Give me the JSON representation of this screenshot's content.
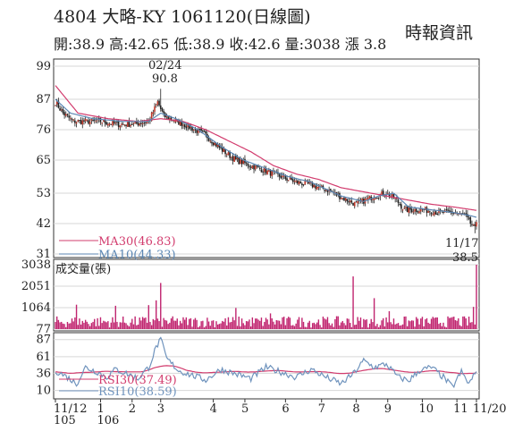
{
  "header": {
    "title": "4804  大略-KY 1061120(日線圖)",
    "source": "時報資訊",
    "ohlc": "開:38.9 高:42.65 低:38.9 收:42.6 量:3038 漲 3.8"
  },
  "chart_data": [
    {
      "type": "candlestick",
      "yticks": [
        99,
        87,
        76,
        65,
        53,
        42,
        31
      ],
      "ylim": [
        31,
        99
      ],
      "annotations": [
        {
          "label": "02/24",
          "value": "90.8"
        },
        {
          "label": "11/17",
          "value": "38.5"
        }
      ],
      "legend": [
        {
          "name": "MA30(46.83)",
          "color": "#d23c6e"
        },
        {
          "name": "MA10(44.33)",
          "color": "#5b86b3"
        }
      ],
      "months": [
        "11/12",
        "1",
        "2",
        "3",
        "4",
        "5",
        "6",
        "7",
        "8",
        "9",
        "10",
        "11",
        "11/20"
      ],
      "close_anchors": [
        [
          0,
          86
        ],
        [
          5,
          82
        ],
        [
          12,
          79
        ],
        [
          20,
          79
        ],
        [
          30,
          79
        ],
        [
          40,
          78
        ],
        [
          52,
          78
        ],
        [
          62,
          79
        ],
        [
          68,
          86
        ],
        [
          72,
          81
        ],
        [
          85,
          78
        ],
        [
          100,
          74
        ],
        [
          110,
          69
        ],
        [
          120,
          65
        ],
        [
          130,
          63
        ],
        [
          140,
          61
        ],
        [
          150,
          59
        ],
        [
          160,
          57
        ],
        [
          170,
          56
        ],
        [
          182,
          54
        ],
        [
          192,
          51
        ],
        [
          200,
          49
        ],
        [
          212,
          52
        ],
        [
          220,
          53
        ],
        [
          226,
          51
        ],
        [
          232,
          47
        ],
        [
          245,
          47
        ],
        [
          255,
          46
        ],
        [
          265,
          46
        ],
        [
          272,
          45
        ],
        [
          279,
          40
        ],
        [
          280,
          42.6
        ]
      ],
      "ma30_anchors": [
        [
          0,
          92
        ],
        [
          15,
          82
        ],
        [
          35,
          80
        ],
        [
          55,
          79
        ],
        [
          70,
          80
        ],
        [
          85,
          79
        ],
        [
          100,
          76
        ],
        [
          115,
          72
        ],
        [
          130,
          68
        ],
        [
          145,
          63
        ],
        [
          160,
          60
        ],
        [
          175,
          58
        ],
        [
          190,
          55
        ],
        [
          210,
          53
        ],
        [
          230,
          51
        ],
        [
          250,
          49
        ],
        [
          265,
          48
        ],
        [
          280,
          46.8
        ]
      ],
      "ma10_anchors": [
        [
          0,
          87
        ],
        [
          10,
          82
        ],
        [
          25,
          80
        ],
        [
          45,
          79
        ],
        [
          62,
          79
        ],
        [
          70,
          82
        ],
        [
          80,
          80
        ],
        [
          95,
          76
        ],
        [
          110,
          70
        ],
        [
          125,
          65
        ],
        [
          140,
          62
        ],
        [
          155,
          59
        ],
        [
          170,
          57
        ],
        [
          190,
          52
        ],
        [
          205,
          50
        ],
        [
          215,
          52
        ],
        [
          225,
          53
        ],
        [
          235,
          48
        ],
        [
          250,
          47
        ],
        [
          265,
          46
        ],
        [
          275,
          45
        ],
        [
          280,
          44.3
        ]
      ],
      "spike": {
        "index": 70,
        "high": 90.8
      }
    },
    {
      "type": "bar",
      "title": "成交量(張)",
      "yticks": [
        3038,
        2051,
        1064,
        77
      ],
      "ylim": [
        77,
        3038
      ],
      "color": "#c0246f"
    },
    {
      "type": "line",
      "yticks": [
        87,
        61,
        36,
        10
      ],
      "ylim": [
        0,
        92
      ],
      "legend": [
        {
          "name": "RSI30(37.49)",
          "color": "#d23c6e"
        },
        {
          "name": "RSI10(38.59)",
          "color": "#6f93bd"
        }
      ],
      "rsi_anchors": [
        [
          0,
          40
        ],
        [
          8,
          30
        ],
        [
          14,
          20
        ],
        [
          20,
          45
        ],
        [
          28,
          38
        ],
        [
          34,
          30
        ],
        [
          40,
          42
        ],
        [
          48,
          35
        ],
        [
          55,
          28
        ],
        [
          62,
          45
        ],
        [
          67,
          75
        ],
        [
          70,
          88
        ],
        [
          74,
          58
        ],
        [
          82,
          40
        ],
        [
          92,
          32
        ],
        [
          100,
          26
        ],
        [
          110,
          42
        ],
        [
          120,
          35
        ],
        [
          130,
          28
        ],
        [
          140,
          45
        ],
        [
          150,
          38
        ],
        [
          160,
          30
        ],
        [
          170,
          42
        ],
        [
          180,
          30
        ],
        [
          190,
          20
        ],
        [
          198,
          35
        ],
        [
          205,
          55
        ],
        [
          212,
          45
        ],
        [
          220,
          50
        ],
        [
          228,
          30
        ],
        [
          235,
          25
        ],
        [
          242,
          40
        ],
        [
          250,
          45
        ],
        [
          258,
          30
        ],
        [
          264,
          15
        ],
        [
          270,
          38
        ],
        [
          275,
          20
        ],
        [
          280,
          38.6
        ]
      ]
    }
  ]
}
